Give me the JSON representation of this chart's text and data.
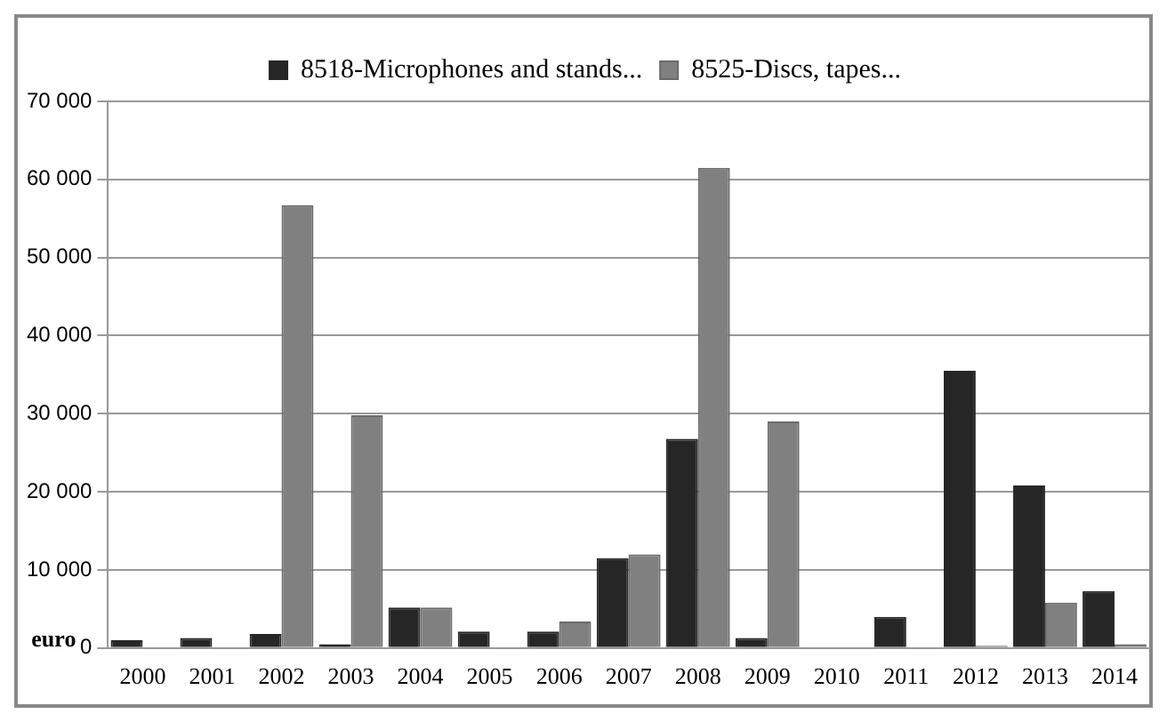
{
  "chart_data": {
    "type": "bar",
    "ylabel": "euro",
    "categories": [
      "2000",
      "2001",
      "2002",
      "2003",
      "2004",
      "2005",
      "2006",
      "2007",
      "2008",
      "2009",
      "2010",
      "2011",
      "2012",
      "2013",
      "2014"
    ],
    "series": [
      {
        "name": "8518-Microphones and stands...",
        "color": "#262626",
        "values": [
          1000,
          1300,
          1800,
          500,
          5200,
          2100,
          2100,
          11500,
          26800,
          1300,
          0,
          4000,
          35500,
          20800,
          7300
        ]
      },
      {
        "name": "8525-Discs, tapes...",
        "color": "#808080",
        "values": [
          0,
          0,
          56700,
          29800,
          5200,
          0,
          3400,
          12000,
          61500,
          29000,
          0,
          0,
          300,
          5800,
          500
        ]
      }
    ],
    "ylim": [
      0,
      70000
    ],
    "yticks": [
      {
        "value": 0,
        "label": "0"
      },
      {
        "value": 10000,
        "label": "10 000"
      },
      {
        "value": 20000,
        "label": "20 000"
      },
      {
        "value": 30000,
        "label": "30 000"
      },
      {
        "value": 40000,
        "label": "40 000"
      },
      {
        "value": 50000,
        "label": "50 000"
      },
      {
        "value": 60000,
        "label": "60 000"
      },
      {
        "value": 70000,
        "label": "70 000"
      }
    ],
    "grid": "y",
    "legend": "top"
  }
}
